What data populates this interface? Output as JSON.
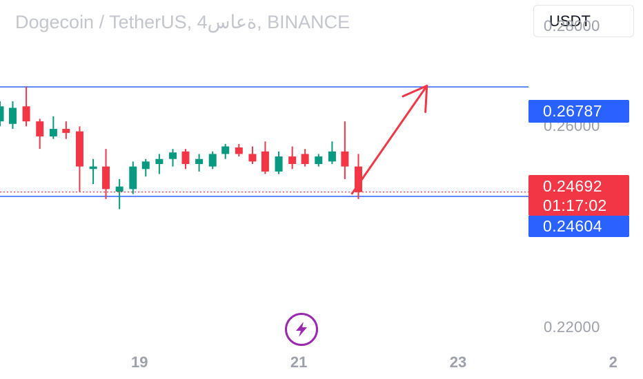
{
  "header": {
    "title": "Dogecoin / TetherUS, 4ةعاس, BINANCE",
    "currency_button": "USDT"
  },
  "colors": {
    "up": "#089981",
    "down": "#f23645",
    "level_line": "#2962ff",
    "arrow": "#f23645",
    "flash": "#9c27b0"
  },
  "icons": {
    "flash": "lightning-bolt-icon"
  },
  "chart_data": {
    "type": "candlestick",
    "title": "Dogecoin / TetherUS, 4ةعاس, BINANCE",
    "ylim": [
      0.2165,
      0.2852
    ],
    "y_ticks": [
      "0.28000",
      "0.26000",
      "0.22000"
    ],
    "y_tick_values": [
      0.28,
      0.26,
      0.22
    ],
    "x_ticks": [
      "19",
      "21",
      "23",
      "2"
    ],
    "x_tick_positions": [
      18.75,
      20.75,
      22.75,
      24.75
    ],
    "xlim": [
      17.0,
      24.9
    ],
    "grid": false,
    "levels": [
      {
        "label": "0.26787",
        "value": 0.26787
      },
      {
        "label": "0.24604",
        "value": 0.24604
      }
    ],
    "last_price": {
      "label": "0.24692",
      "value": 0.24692,
      "countdown": "01:17:02"
    },
    "annotation": {
      "type": "arrow",
      "from": {
        "x": 21.42,
        "y": 0.2466
      },
      "to": {
        "x": 22.36,
        "y": 0.2681
      }
    },
    "candles": [
      {
        "x": 17.0,
        "o": 0.261,
        "h": 0.265,
        "l": 0.26,
        "c": 0.264
      },
      {
        "x": 17.16,
        "o": 0.2605,
        "h": 0.265,
        "l": 0.2595,
        "c": 0.2637
      },
      {
        "x": 17.33,
        "o": 0.264,
        "h": 0.268,
        "l": 0.26,
        "c": 0.261
      },
      {
        "x": 17.5,
        "o": 0.261,
        "h": 0.2615,
        "l": 0.2555,
        "c": 0.258
      },
      {
        "x": 17.67,
        "o": 0.258,
        "h": 0.262,
        "l": 0.2575,
        "c": 0.2595
      },
      {
        "x": 17.83,
        "o": 0.2595,
        "h": 0.261,
        "l": 0.2575,
        "c": 0.2587
      },
      {
        "x": 18.0,
        "o": 0.259,
        "h": 0.26,
        "l": 0.247,
        "c": 0.252
      },
      {
        "x": 18.17,
        "o": 0.2515,
        "h": 0.2535,
        "l": 0.2485,
        "c": 0.252
      },
      {
        "x": 18.33,
        "o": 0.252,
        "h": 0.2555,
        "l": 0.2455,
        "c": 0.2475
      },
      {
        "x": 18.5,
        "o": 0.247,
        "h": 0.2495,
        "l": 0.2435,
        "c": 0.248
      },
      {
        "x": 18.67,
        "o": 0.2475,
        "h": 0.253,
        "l": 0.2465,
        "c": 0.252
      },
      {
        "x": 18.83,
        "o": 0.2515,
        "h": 0.2535,
        "l": 0.25,
        "c": 0.253
      },
      {
        "x": 19.0,
        "o": 0.2525,
        "h": 0.2545,
        "l": 0.2505,
        "c": 0.2535
      },
      {
        "x": 19.17,
        "o": 0.2535,
        "h": 0.2555,
        "l": 0.252,
        "c": 0.2548
      },
      {
        "x": 19.33,
        "o": 0.255,
        "h": 0.2555,
        "l": 0.2515,
        "c": 0.2525
      },
      {
        "x": 19.5,
        "o": 0.2525,
        "h": 0.2545,
        "l": 0.251,
        "c": 0.2535
      },
      {
        "x": 19.67,
        "o": 0.252,
        "h": 0.255,
        "l": 0.2515,
        "c": 0.2545
      },
      {
        "x": 19.83,
        "o": 0.2545,
        "h": 0.2565,
        "l": 0.2535,
        "c": 0.256
      },
      {
        "x": 20.0,
        "o": 0.2558,
        "h": 0.2565,
        "l": 0.254,
        "c": 0.2545
      },
      {
        "x": 20.17,
        "o": 0.2545,
        "h": 0.256,
        "l": 0.2525,
        "c": 0.253
      },
      {
        "x": 20.33,
        "o": 0.255,
        "h": 0.257,
        "l": 0.2505,
        "c": 0.251
      },
      {
        "x": 20.5,
        "o": 0.251,
        "h": 0.255,
        "l": 0.2505,
        "c": 0.254
      },
      {
        "x": 20.67,
        "o": 0.254,
        "h": 0.256,
        "l": 0.2515,
        "c": 0.2525
      },
      {
        "x": 20.83,
        "o": 0.2545,
        "h": 0.2555,
        "l": 0.252,
        "c": 0.2525
      },
      {
        "x": 21.0,
        "o": 0.2525,
        "h": 0.2545,
        "l": 0.252,
        "c": 0.254
      },
      {
        "x": 21.17,
        "o": 0.253,
        "h": 0.257,
        "l": 0.2525,
        "c": 0.255
      },
      {
        "x": 21.33,
        "o": 0.255,
        "h": 0.261,
        "l": 0.2495,
        "c": 0.252
      },
      {
        "x": 21.5,
        "o": 0.252,
        "h": 0.2545,
        "l": 0.2455,
        "c": 0.2469
      }
    ]
  }
}
